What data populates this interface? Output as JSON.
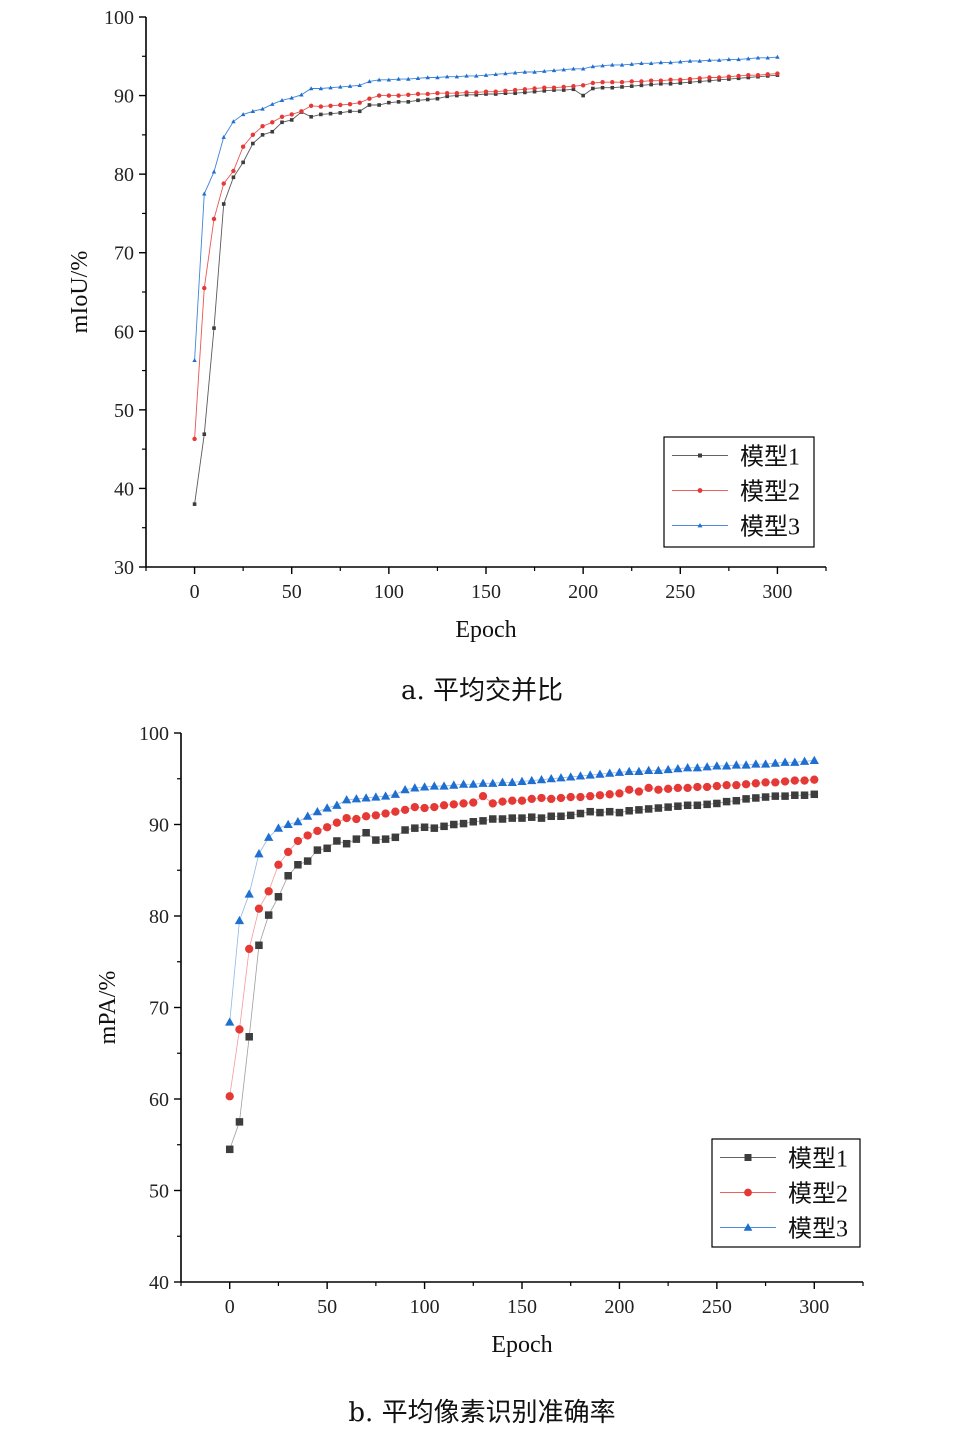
{
  "captions": {
    "a": "a. 平均交并比",
    "b": "b. 平均像素识别准确率"
  },
  "colors": {
    "series1": "#3d3d3d",
    "series2": "#e53935",
    "series3": "#1f6fd1"
  },
  "chart_data": [
    {
      "type": "line",
      "title": "",
      "xlabel": "Epoch",
      "ylabel": "mIoU/%",
      "xlim": [
        -25,
        325
      ],
      "ylim": [
        30,
        100
      ],
      "xticks": [
        0,
        50,
        100,
        150,
        200,
        250,
        300
      ],
      "yticks": [
        30,
        40,
        50,
        60,
        70,
        80,
        90,
        100
      ],
      "grid": false,
      "legend": "bottom-right",
      "x": [
        0,
        5,
        10,
        15,
        20,
        25,
        30,
        35,
        40,
        45,
        50,
        55,
        60,
        65,
        70,
        75,
        80,
        85,
        90,
        95,
        100,
        105,
        110,
        115,
        120,
        125,
        130,
        135,
        140,
        145,
        150,
        155,
        160,
        165,
        170,
        175,
        180,
        185,
        190,
        195,
        200,
        205,
        210,
        215,
        220,
        225,
        230,
        235,
        240,
        245,
        250,
        255,
        260,
        265,
        270,
        275,
        280,
        285,
        290,
        295,
        300
      ],
      "series": [
        {
          "name": "模型1",
          "marker": "square",
          "values": [
            38.0,
            46.9,
            60.4,
            76.2,
            79.6,
            81.5,
            83.9,
            85.0,
            85.4,
            86.6,
            86.9,
            87.9,
            87.3,
            87.6,
            87.7,
            87.8,
            88.0,
            88.0,
            88.8,
            88.8,
            89.1,
            89.2,
            89.2,
            89.4,
            89.5,
            89.6,
            89.9,
            90.0,
            90.1,
            90.1,
            90.2,
            90.2,
            90.3,
            90.3,
            90.4,
            90.5,
            90.6,
            90.7,
            90.7,
            90.8,
            90.0,
            90.9,
            91.0,
            91.0,
            91.1,
            91.2,
            91.3,
            91.4,
            91.5,
            91.5,
            91.6,
            91.7,
            91.8,
            91.9,
            92.0,
            92.1,
            92.2,
            92.3,
            92.4,
            92.5,
            92.6
          ]
        },
        {
          "name": "模型2",
          "marker": "circle",
          "values": [
            46.3,
            65.5,
            74.3,
            78.8,
            80.4,
            83.5,
            85.0,
            86.1,
            86.6,
            87.3,
            87.6,
            88.0,
            88.7,
            88.6,
            88.7,
            88.8,
            88.9,
            89.1,
            89.6,
            90.0,
            90.0,
            90.0,
            90.1,
            90.2,
            90.2,
            90.3,
            90.3,
            90.3,
            90.4,
            90.4,
            90.5,
            90.5,
            90.6,
            90.7,
            90.8,
            90.9,
            91.0,
            91.0,
            91.1,
            91.2,
            91.3,
            91.6,
            91.7,
            91.7,
            91.7,
            91.8,
            91.8,
            91.9,
            91.9,
            92.0,
            92.0,
            92.1,
            92.2,
            92.3,
            92.3,
            92.4,
            92.5,
            92.6,
            92.6,
            92.7,
            92.8
          ]
        },
        {
          "name": "模型3",
          "marker": "triangle",
          "values": [
            56.3,
            77.5,
            80.3,
            84.7,
            86.7,
            87.6,
            88.0,
            88.3,
            88.9,
            89.4,
            89.7,
            90.1,
            90.9,
            90.9,
            91.0,
            91.1,
            91.2,
            91.3,
            91.8,
            92.0,
            92.0,
            92.1,
            92.1,
            92.2,
            92.3,
            92.3,
            92.4,
            92.4,
            92.5,
            92.5,
            92.6,
            92.7,
            92.8,
            92.9,
            93.0,
            93.0,
            93.1,
            93.2,
            93.3,
            93.4,
            93.4,
            93.7,
            93.8,
            93.9,
            93.9,
            94.0,
            94.1,
            94.1,
            94.2,
            94.2,
            94.3,
            94.4,
            94.4,
            94.5,
            94.5,
            94.6,
            94.6,
            94.7,
            94.8,
            94.8,
            94.9
          ]
        }
      ]
    },
    {
      "type": "scatter",
      "title": "",
      "xlabel": "Epoch",
      "ylabel": "mPA/%",
      "xlim": [
        -25,
        325
      ],
      "ylim": [
        40,
        100
      ],
      "xticks": [
        0,
        50,
        100,
        150,
        200,
        250,
        300
      ],
      "yticks": [
        40,
        50,
        60,
        70,
        80,
        90,
        100
      ],
      "grid": false,
      "legend": "bottom-right",
      "x": [
        0,
        5,
        10,
        15,
        20,
        25,
        30,
        35,
        40,
        45,
        50,
        55,
        60,
        65,
        70,
        75,
        80,
        85,
        90,
        95,
        100,
        105,
        110,
        115,
        120,
        125,
        130,
        135,
        140,
        145,
        150,
        155,
        160,
        165,
        170,
        175,
        180,
        185,
        190,
        195,
        200,
        205,
        210,
        215,
        220,
        225,
        230,
        235,
        240,
        245,
        250,
        255,
        260,
        265,
        270,
        275,
        280,
        285,
        290,
        295,
        300
      ],
      "series": [
        {
          "name": "模型1",
          "marker": "square",
          "values": [
            54.5,
            57.5,
            66.8,
            76.8,
            80.1,
            82.1,
            84.4,
            85.6,
            86.0,
            87.2,
            87.4,
            88.2,
            87.9,
            88.4,
            89.1,
            88.3,
            88.4,
            88.6,
            89.4,
            89.6,
            89.7,
            89.6,
            89.8,
            90.0,
            90.1,
            90.3,
            90.4,
            90.6,
            90.6,
            90.7,
            90.7,
            90.8,
            90.7,
            90.9,
            90.9,
            91.0,
            91.2,
            91.4,
            91.3,
            91.4,
            91.3,
            91.5,
            91.6,
            91.7,
            91.8,
            91.9,
            92.0,
            92.1,
            92.1,
            92.2,
            92.3,
            92.5,
            92.6,
            92.8,
            92.9,
            93.0,
            93.1,
            93.1,
            93.2,
            93.2,
            93.3
          ]
        },
        {
          "name": "模型2",
          "marker": "circle",
          "values": [
            60.3,
            67.6,
            76.4,
            80.8,
            82.7,
            85.6,
            87.0,
            88.2,
            88.8,
            89.3,
            89.7,
            90.2,
            90.7,
            90.6,
            90.9,
            91.0,
            91.2,
            91.4,
            91.6,
            91.9,
            91.8,
            91.9,
            92.1,
            92.2,
            92.3,
            92.4,
            93.1,
            92.3,
            92.5,
            92.6,
            92.6,
            92.8,
            92.9,
            92.8,
            92.9,
            93.0,
            93.0,
            93.1,
            93.2,
            93.3,
            93.4,
            93.8,
            93.6,
            94.0,
            93.8,
            93.9,
            94.0,
            94.0,
            94.1,
            94.1,
            94.2,
            94.3,
            94.3,
            94.4,
            94.5,
            94.6,
            94.6,
            94.7,
            94.8,
            94.8,
            94.9
          ]
        },
        {
          "name": "模型3",
          "marker": "triangle",
          "values": [
            68.4,
            79.5,
            82.4,
            86.8,
            88.6,
            89.6,
            90.0,
            90.3,
            90.9,
            91.4,
            91.8,
            92.1,
            92.7,
            92.8,
            92.9,
            93.0,
            93.1,
            93.3,
            93.8,
            94.0,
            94.1,
            94.2,
            94.2,
            94.3,
            94.4,
            94.4,
            94.5,
            94.5,
            94.6,
            94.6,
            94.7,
            94.8,
            94.9,
            95.0,
            95.1,
            95.2,
            95.3,
            95.4,
            95.5,
            95.6,
            95.7,
            95.8,
            95.8,
            95.9,
            95.9,
            96.0,
            96.1,
            96.2,
            96.2,
            96.3,
            96.4,
            96.4,
            96.5,
            96.5,
            96.6,
            96.6,
            96.7,
            96.8,
            96.8,
            96.9,
            97.0
          ]
        }
      ]
    }
  ]
}
